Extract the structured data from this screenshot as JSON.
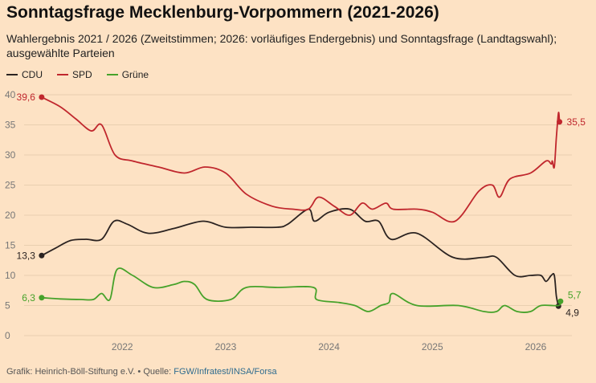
{
  "header": {
    "title": "Sonntagsfrage Mecklenburg-Vorpommern (2021-2026)",
    "subtitle": "Wahlergebnis 2021 / 2026 (Zweitstimmen; 2026: vorläufiges Endergebnis) und Sonntagsfrage (Landtagswahl); ausgewählte Parteien"
  },
  "footer": {
    "prefix": "Grafik: Heinrich-Böll-Stiftung e.V. • Quelle: ",
    "source": "FGW/Infratest/INSA/Forsa"
  },
  "colors": {
    "background": "#fde2c4",
    "CDU": "#2b2321",
    "SPD": "#c0272d",
    "Grüne": "#46a22a",
    "grid": "#e9cfb0"
  },
  "chart_data": {
    "type": "line",
    "title": "Sonntagsfrage Mecklenburg-Vorpommern (2021-2026)",
    "xlabel": "",
    "ylabel": "",
    "xlim": [
      2021.55,
      2026.85
    ],
    "ylim": [
      0,
      40
    ],
    "x_ticks": [
      "2022",
      "2023",
      "2024",
      "2025",
      "2026"
    ],
    "y_ticks": [
      0,
      5,
      10,
      15,
      20,
      25,
      30,
      35,
      40
    ],
    "grid": "horizontal",
    "legend": "top-left",
    "series": [
      {
        "name": "CDU",
        "start_label": "13,3",
        "end_label": "4,9",
        "points": [
          [
            2021.72,
            13.3
          ],
          [
            2021.85,
            14.5
          ],
          [
            2022.0,
            15.8
          ],
          [
            2022.15,
            16.0
          ],
          [
            2022.3,
            16.0
          ],
          [
            2022.42,
            19.0
          ],
          [
            2022.55,
            18.5
          ],
          [
            2022.75,
            17.0
          ],
          [
            2023.0,
            17.8
          ],
          [
            2023.28,
            19.0
          ],
          [
            2023.5,
            18.0
          ],
          [
            2023.75,
            18.0
          ],
          [
            2024.0,
            18.0
          ],
          [
            2024.1,
            18.5
          ],
          [
            2024.3,
            21.0
          ],
          [
            2024.36,
            19.0
          ],
          [
            2024.5,
            20.5
          ],
          [
            2024.7,
            21.0
          ],
          [
            2024.85,
            19.0
          ],
          [
            2024.98,
            19.0
          ],
          [
            2025.1,
            16.0
          ],
          [
            2025.35,
            17.0
          ],
          [
            2025.7,
            13.0
          ],
          [
            2026.0,
            13.0
          ],
          [
            2026.12,
            13.0
          ],
          [
            2026.3,
            10.0
          ],
          [
            2026.45,
            10.0
          ],
          [
            2026.55,
            10.0
          ],
          [
            2026.6,
            9.0
          ],
          [
            2026.65,
            10.0
          ],
          [
            2026.68,
            10.0
          ],
          [
            2026.7,
            6.5
          ],
          [
            2026.72,
            4.9
          ]
        ]
      },
      {
        "name": "SPD",
        "start_label": "39,6",
        "end_label": "35,5",
        "points": [
          [
            2021.72,
            39.6
          ],
          [
            2021.9,
            38.0
          ],
          [
            2022.05,
            36.0
          ],
          [
            2022.2,
            34.0
          ],
          [
            2022.3,
            35.0
          ],
          [
            2022.43,
            30.0
          ],
          [
            2022.6,
            29.0
          ],
          [
            2022.85,
            28.0
          ],
          [
            2023.1,
            27.0
          ],
          [
            2023.3,
            28.0
          ],
          [
            2023.5,
            27.0
          ],
          [
            2023.7,
            23.5
          ],
          [
            2023.95,
            21.5
          ],
          [
            2024.15,
            21.0
          ],
          [
            2024.3,
            21.0
          ],
          [
            2024.4,
            23.0
          ],
          [
            2024.55,
            21.5
          ],
          [
            2024.7,
            20.0
          ],
          [
            2024.82,
            22.0
          ],
          [
            2024.92,
            21.0
          ],
          [
            2025.05,
            22.0
          ],
          [
            2025.12,
            21.0
          ],
          [
            2025.35,
            21.0
          ],
          [
            2025.5,
            20.5
          ],
          [
            2025.72,
            19.0
          ],
          [
            2025.95,
            24.0
          ],
          [
            2026.08,
            25.0
          ],
          [
            2026.15,
            23.0
          ],
          [
            2026.25,
            26.0
          ],
          [
            2026.45,
            27.0
          ],
          [
            2026.6,
            29.0
          ],
          [
            2026.65,
            28.5
          ],
          [
            2026.66,
            29.0
          ],
          [
            2026.68,
            28.0
          ],
          [
            2026.7,
            33.0
          ],
          [
            2026.72,
            37.0
          ],
          [
            2026.73,
            35.5
          ]
        ]
      },
      {
        "name": "Grüne",
        "start_label": "6,3",
        "end_label": "5,7",
        "points": [
          [
            2021.72,
            6.3
          ],
          [
            2021.9,
            6.1
          ],
          [
            2022.1,
            6.0
          ],
          [
            2022.22,
            6.0
          ],
          [
            2022.3,
            7.0
          ],
          [
            2022.38,
            6.0
          ],
          [
            2022.45,
            11.0
          ],
          [
            2022.6,
            10.0
          ],
          [
            2022.8,
            8.0
          ],
          [
            2023.0,
            8.5
          ],
          [
            2023.1,
            9.0
          ],
          [
            2023.2,
            8.5
          ],
          [
            2023.32,
            6.0
          ],
          [
            2023.55,
            6.0
          ],
          [
            2023.7,
            8.0
          ],
          [
            2024.0,
            8.0
          ],
          [
            2024.35,
            8.0
          ],
          [
            2024.38,
            6.0
          ],
          [
            2024.6,
            5.5
          ],
          [
            2024.75,
            5.0
          ],
          [
            2024.88,
            4.0
          ],
          [
            2025.0,
            5.0
          ],
          [
            2025.08,
            5.5
          ],
          [
            2025.12,
            7.0
          ],
          [
            2025.35,
            5.0
          ],
          [
            2025.75,
            5.0
          ],
          [
            2026.0,
            4.0
          ],
          [
            2026.12,
            4.0
          ],
          [
            2026.2,
            5.0
          ],
          [
            2026.32,
            4.0
          ],
          [
            2026.45,
            4.0
          ],
          [
            2026.55,
            5.0
          ],
          [
            2026.72,
            5.0
          ],
          [
            2026.74,
            5.7
          ]
        ]
      }
    ]
  }
}
